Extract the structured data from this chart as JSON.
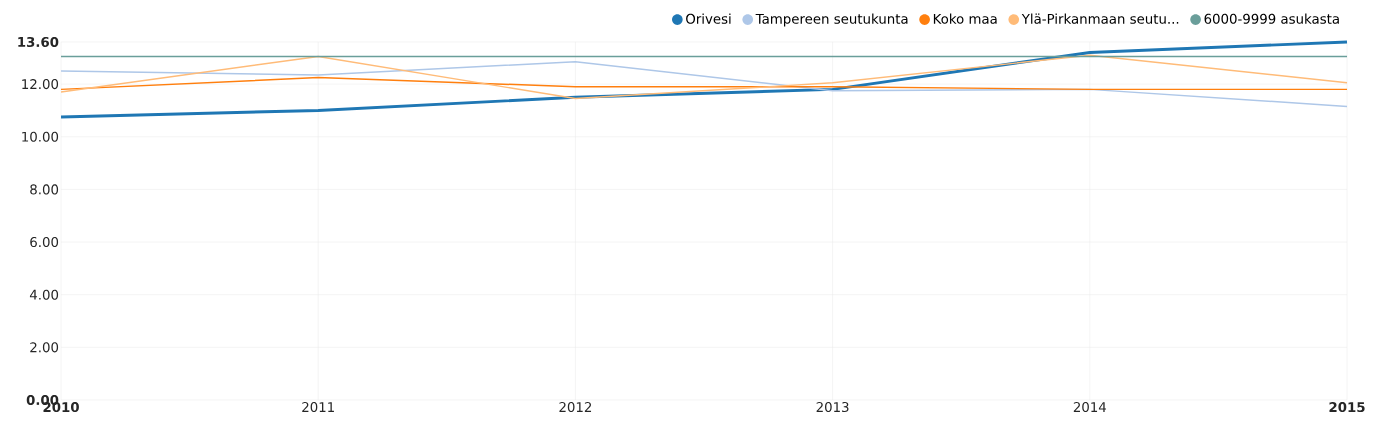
{
  "chart_data": {
    "type": "line",
    "x": [
      2010,
      2011,
      2012,
      2013,
      2014,
      2015
    ],
    "xlim": [
      2010,
      2015
    ],
    "xticks": [
      2010,
      2011,
      2012,
      2013,
      2014,
      2015
    ],
    "ylim": [
      0,
      13.6
    ],
    "yticks": [
      {
        "value": 0,
        "label": "0.00"
      },
      {
        "value": 2,
        "label": "2.00"
      },
      {
        "value": 4,
        "label": "4.00"
      },
      {
        "value": 6,
        "label": "6.00"
      },
      {
        "value": 8,
        "label": "8.00"
      },
      {
        "value": 10,
        "label": "10.00"
      },
      {
        "value": 12,
        "label": "12.00"
      },
      {
        "value": 13.6,
        "label": "13.60"
      }
    ],
    "grid": true,
    "legend": "top right",
    "marker": "none",
    "line_style": "solid",
    "series": [
      {
        "name": "Orivesi",
        "color": "#1f77b4",
        "values": [
          10.75,
          11.0,
          11.5,
          11.8,
          13.2,
          13.6
        ]
      },
      {
        "name": "Tampereen seutukunta",
        "color": "#aec7e8",
        "values": [
          12.5,
          12.35,
          12.85,
          11.75,
          11.8,
          11.15
        ]
      },
      {
        "name": "Koko maa",
        "color": "#ff7f0e",
        "values": [
          11.8,
          12.25,
          11.9,
          11.9,
          11.8,
          11.8
        ]
      },
      {
        "name": "Ylä-Pirkanmaan seutu...",
        "color": "#ffbb78",
        "values": [
          11.7,
          13.05,
          11.45,
          12.05,
          13.1,
          12.05
        ]
      },
      {
        "name": "6000-9999 asukasta",
        "color": "#6a9e9a",
        "values": [
          13.05,
          13.05,
          13.05,
          13.05,
          13.05,
          13.05
        ]
      }
    ]
  }
}
